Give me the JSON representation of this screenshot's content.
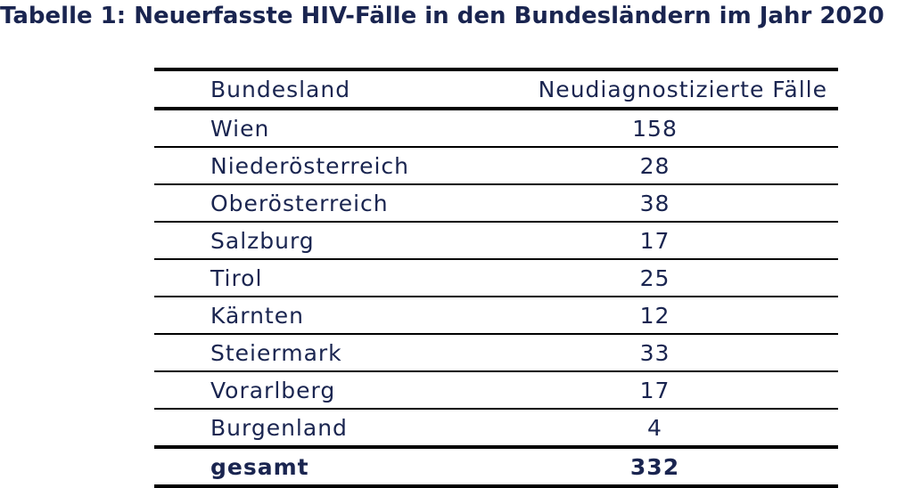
{
  "title": "Tabelle 1: Neuerfasste HIV-Fälle in den Bundesländern im Jahr 2020",
  "table": {
    "headers": [
      "Bundesland",
      "Neudiagnostizierte Fälle"
    ],
    "rows": [
      {
        "land": "Wien",
        "value": "158"
      },
      {
        "land": "Niederösterreich",
        "value": "28"
      },
      {
        "land": "Oberösterreich",
        "value": "38"
      },
      {
        "land": "Salzburg",
        "value": "17"
      },
      {
        "land": "Tirol",
        "value": "25"
      },
      {
        "land": "Kärnten",
        "value": "12"
      },
      {
        "land": "Steiermark",
        "value": "33"
      },
      {
        "land": "Vorarlberg",
        "value": "17"
      },
      {
        "land": "Burgenland",
        "value": "4"
      }
    ],
    "total": {
      "label": "gesamt",
      "value": "332"
    }
  },
  "colors": {
    "text": "#1a2550",
    "rules": "#000000"
  }
}
